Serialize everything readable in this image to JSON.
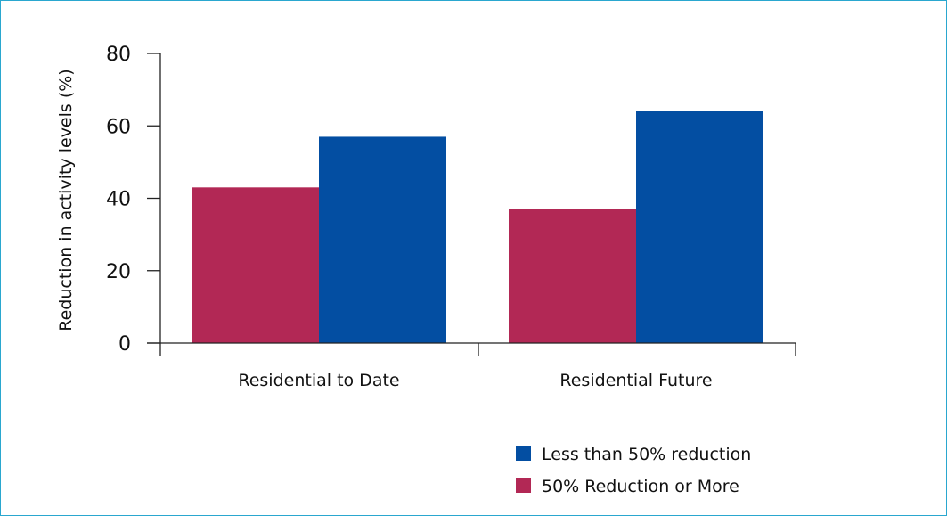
{
  "chart_data": {
    "type": "bar",
    "title": "",
    "xlabel": "",
    "ylabel": "Reduction in activity levels (%)",
    "ylim": [
      0,
      80
    ],
    "yticks": [
      0,
      20,
      40,
      60,
      80
    ],
    "categories": [
      "Residential to Date",
      "Residential Future"
    ],
    "series": [
      {
        "name": "50% Reduction or More",
        "values": [
          43,
          37
        ],
        "color": "#b22855"
      },
      {
        "name": "Less than 50% reduction",
        "values": [
          57,
          64
        ],
        "color": "#034ea2"
      }
    ],
    "legend": {
      "position": "bottom-right",
      "order": [
        "Less than 50% reduction",
        "50% Reduction or More"
      ]
    },
    "grid": false
  }
}
